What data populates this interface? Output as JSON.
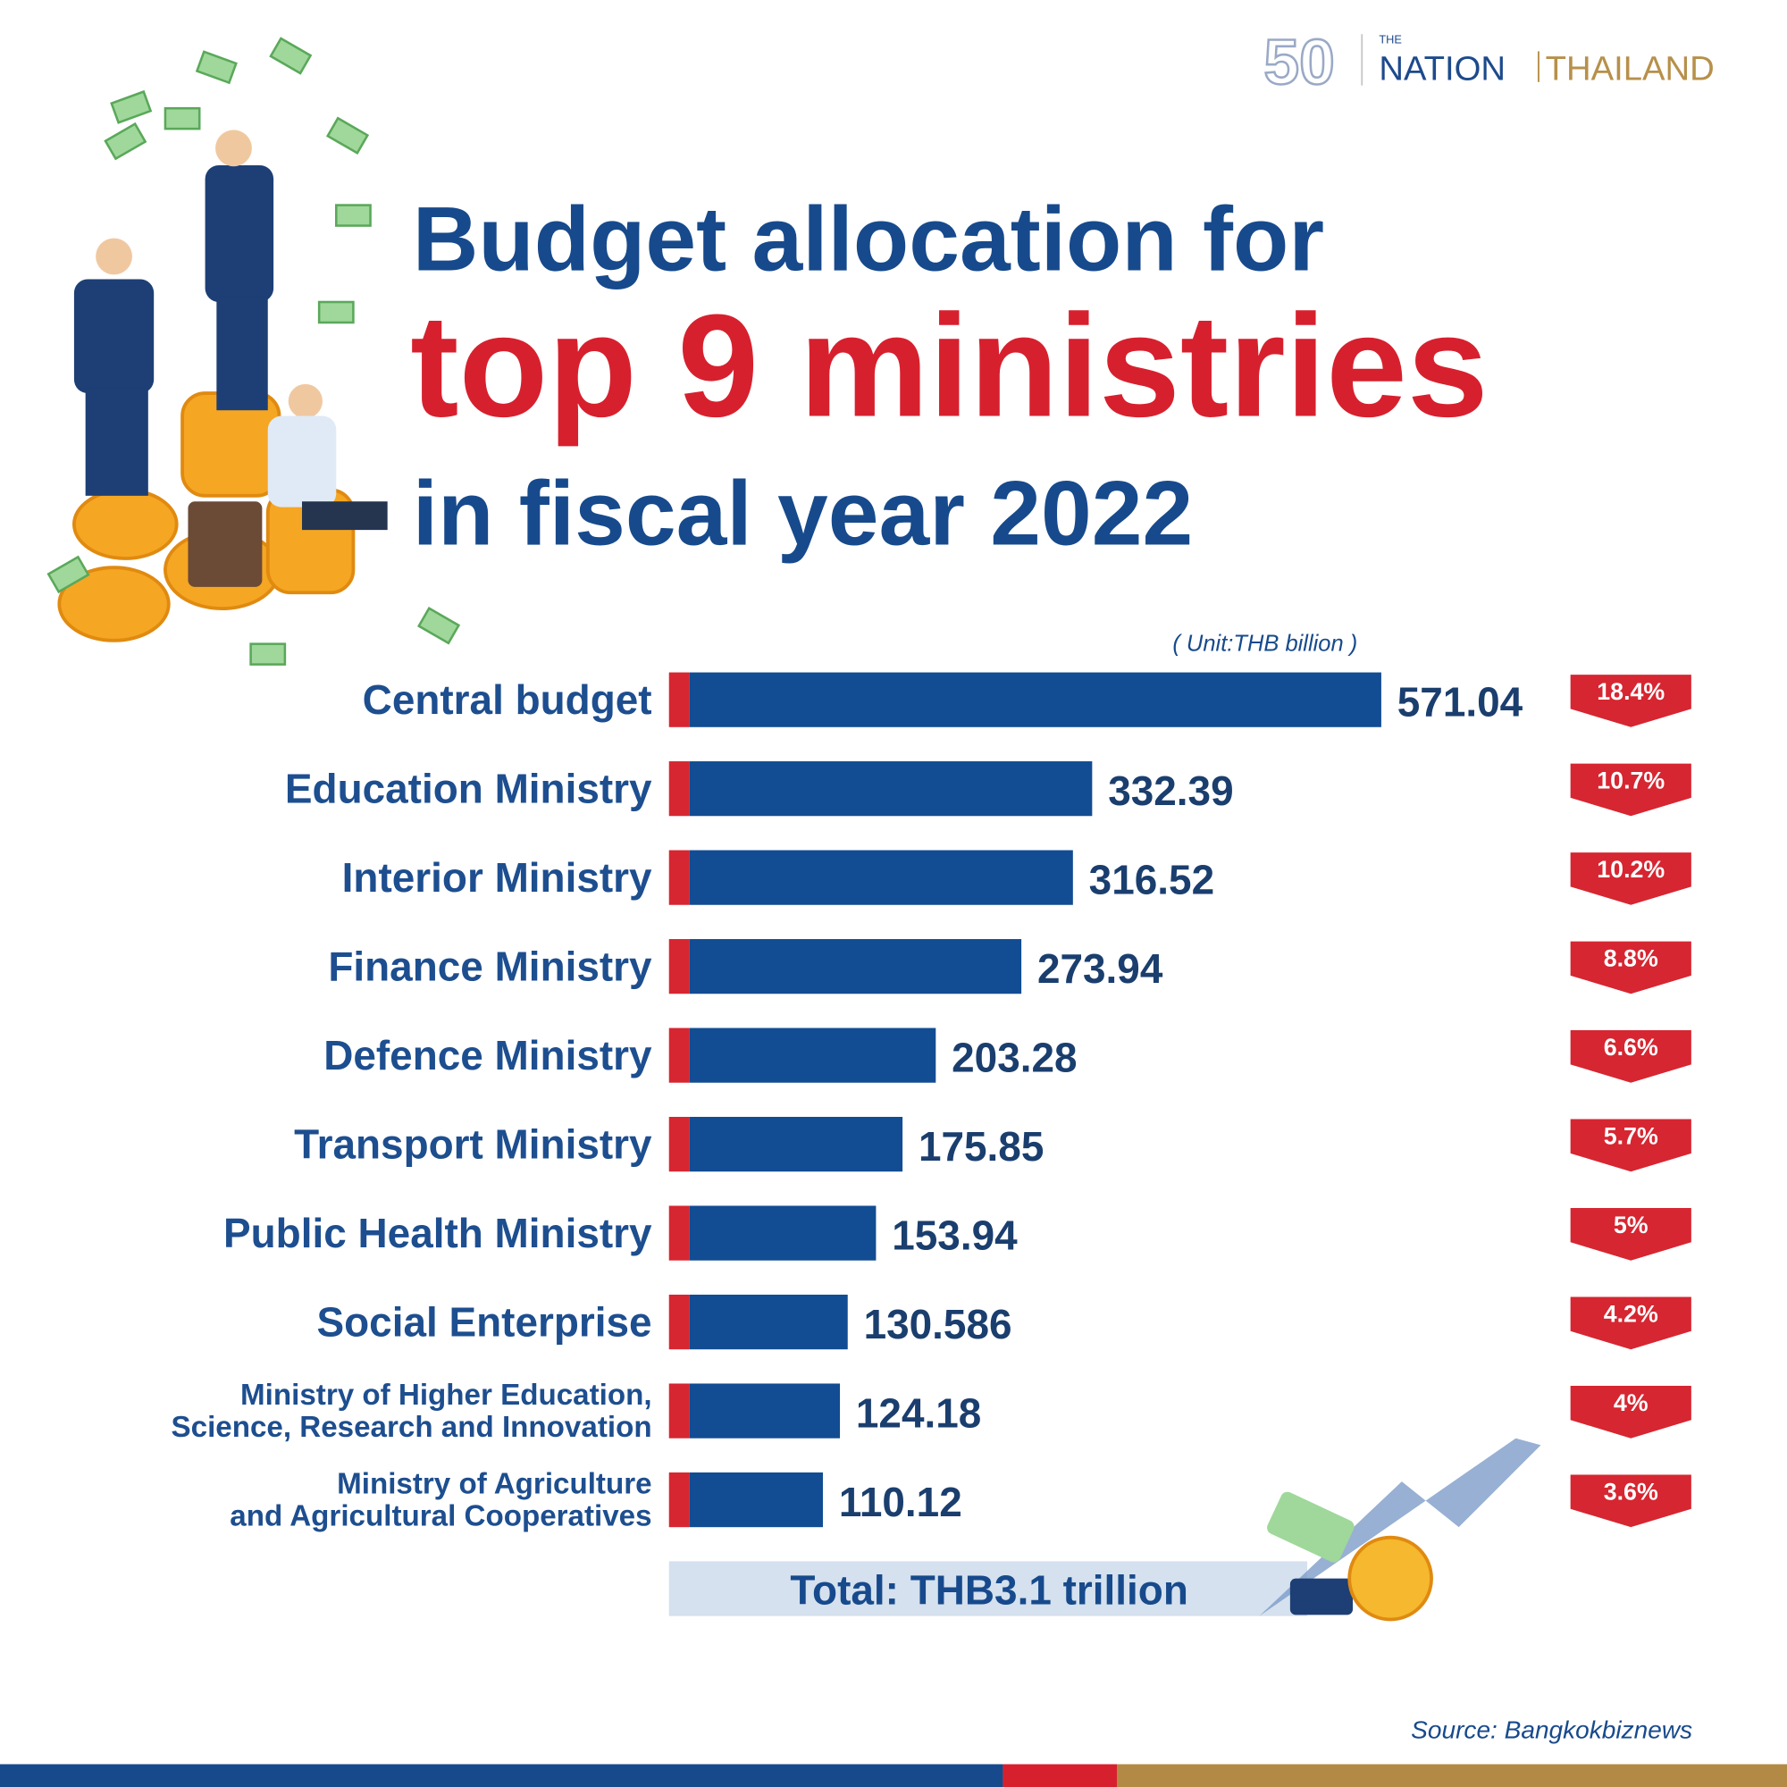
{
  "logo": {
    "anniversary": "50",
    "the": "THE",
    "nation": "NATION",
    "thailand": "THAILAND"
  },
  "chart_data": {
    "type": "bar",
    "orientation": "horizontal",
    "title": [
      "Budget allocation for",
      "top 9 ministries",
      "in fiscal year 2022"
    ],
    "unit": "( Unit:THB billion )",
    "categories": [
      "Central budget",
      "Education Ministry",
      "Interior Ministry",
      "Finance Ministry",
      "Defence Ministry",
      "Transport Ministry",
      "Public Health Ministry",
      "Social Enterprise",
      "Ministry of Higher Education,\nScience, Research and Innovation",
      "Ministry of Agriculture\nand Agricultural Cooperatives"
    ],
    "values": [
      571.04,
      332.39,
      316.52,
      273.94,
      203.28,
      175.85,
      153.94,
      130.586,
      124.18,
      110.12
    ],
    "color": "#124c92",
    "shares": {
      "values": [
        18.4,
        10.7,
        10.2,
        8.8,
        6.6,
        5.7,
        5,
        4.2,
        4,
        3.6
      ],
      "value_labels": [
        "18.4%",
        "10.7%",
        "10.2%",
        "8.8%",
        "6.6%",
        "5.7%",
        "5%",
        "4.2%",
        "4%",
        "3.6%"
      ],
      "color": "#d62631"
    },
    "total": "Total: THB3.1 trillion",
    "source": "Source: Bangkokbiznews"
  }
}
